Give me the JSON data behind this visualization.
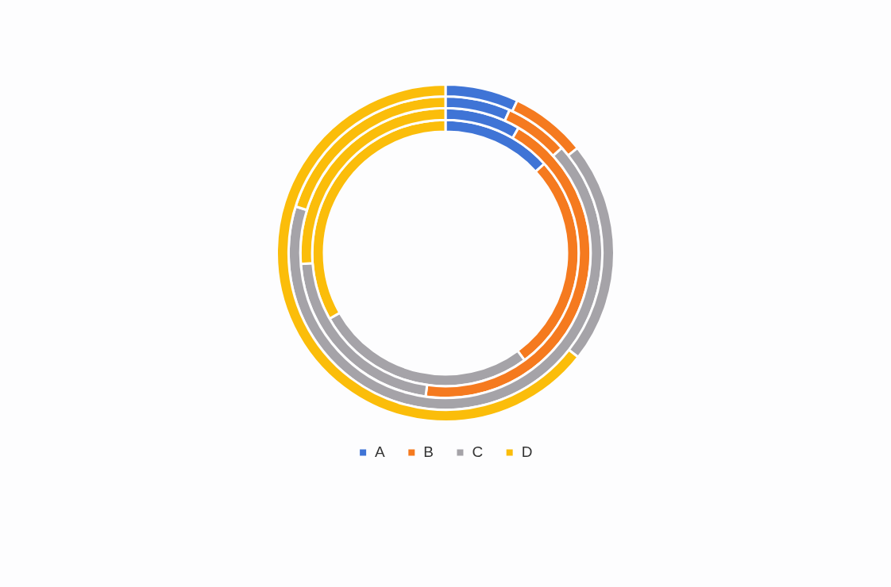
{
  "chart_data": {
    "type": "donut",
    "categories": [
      "A",
      "B",
      "C",
      "D"
    ],
    "colors": [
      "#3f74d6",
      "#f57a1f",
      "#a5a3a8",
      "#fbbd0a"
    ],
    "series": [
      {
        "values": [
          13.3,
          26.6,
          26.9,
          33.2
        ]
      },
      {
        "values": [
          8.4,
          43.8,
          21.6,
          26.2
        ]
      },
      {
        "values": [
          6.7,
          6.6,
          66.5,
          20.2
        ]
      },
      {
        "values": [
          7.0,
          7.3,
          21.3,
          64.4
        ]
      }
    ],
    "legend": "bottom"
  }
}
